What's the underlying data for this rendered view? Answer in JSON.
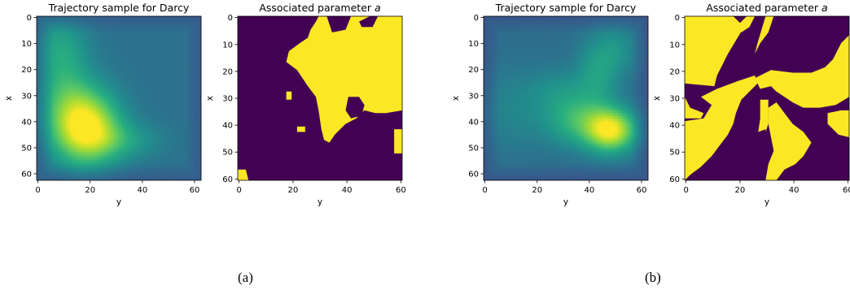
{
  "captions": [
    "(a)",
    "(b)"
  ],
  "chart_data": [
    {
      "type": "heatmap",
      "title": "Trajectory sample for Darcy",
      "xlabel": "y",
      "ylabel": "x",
      "xticks": [
        0,
        20,
        40,
        60
      ],
      "yticks": [
        0,
        10,
        20,
        30,
        40,
        50,
        60
      ],
      "xlim": [
        0,
        63
      ],
      "ylim": [
        63,
        0
      ],
      "colormap": "viridis",
      "field": {
        "background": 0.38,
        "edge_fade": 0.22,
        "blobs": [
          {
            "x": 19,
            "y": 43,
            "sx": 9,
            "sy": 10,
            "amp": 0.62
          },
          {
            "x": 10,
            "y": 28,
            "sx": 8,
            "sy": 14,
            "amp": 0.22
          },
          {
            "x": 34,
            "y": 48,
            "sx": 10,
            "sy": 5,
            "amp": 0.15
          },
          {
            "x": 8,
            "y": 10,
            "sx": 7,
            "sy": 8,
            "amp": 0.12
          }
        ]
      }
    },
    {
      "type": "heatmap",
      "title": "Associated parameter a",
      "title_text": "Associated parameter ",
      "title_italic": "a",
      "xlabel": "y",
      "ylabel": "x",
      "xticks": [
        0,
        20,
        40,
        60
      ],
      "yticks": [
        0,
        10,
        20,
        30,
        40,
        50,
        60
      ],
      "xlim": [
        0,
        61
      ],
      "ylim": [
        61,
        0
      ],
      "colors": {
        "low": "#440154",
        "high": "#fde725"
      },
      "mask": {
        "high_regions": [
          [
            [
              27,
              5
            ],
            [
              29,
              2
            ],
            [
              30,
              0
            ],
            [
              61,
              0
            ],
            [
              61,
              35
            ],
            [
              55,
              36
            ],
            [
              51,
              36
            ],
            [
              47,
              35
            ],
            [
              44,
              38
            ],
            [
              40,
              40
            ],
            [
              36,
              44
            ],
            [
              34,
              47
            ],
            [
              32,
              46
            ],
            [
              31,
              42
            ],
            [
              30,
              35
            ],
            [
              29,
              30
            ],
            [
              26,
              26
            ],
            [
              22,
              20
            ],
            [
              18,
              17
            ],
            [
              19,
              13
            ],
            [
              23,
              10
            ],
            [
              26,
              8
            ]
          ],
          [
            [
              0,
              57
            ],
            [
              3,
              57
            ],
            [
              4,
              61
            ],
            [
              0,
              61
            ]
          ],
          [
            [
              18,
              28
            ],
            [
              20,
              28
            ],
            [
              20,
              31
            ],
            [
              18,
              31
            ]
          ],
          [
            [
              22,
              41
            ],
            [
              25,
              41
            ],
            [
              25,
              43
            ],
            [
              22,
              43
            ]
          ],
          [
            [
              58,
              42
            ],
            [
              61,
              42
            ],
            [
              61,
              51
            ],
            [
              58,
              51
            ]
          ]
        ],
        "low_regions": [
          [
            [
              41,
              30
            ],
            [
              45,
              30
            ],
            [
              47,
              33
            ],
            [
              46,
              37
            ],
            [
              42,
              38
            ],
            [
              40,
              35
            ]
          ],
          [
            [
              33,
              0
            ],
            [
              42,
              0
            ],
            [
              40,
              5
            ],
            [
              35,
              6
            ]
          ],
          [
            [
              45,
              2
            ],
            [
              49,
              0
            ],
            [
              52,
              0
            ],
            [
              50,
              4
            ],
            [
              46,
              4
            ]
          ],
          [
            [
              45,
              40
            ],
            [
              50,
              38
            ],
            [
              54,
              40
            ],
            [
              52,
              44
            ],
            [
              47,
              43
            ]
          ]
        ]
      }
    },
    {
      "type": "heatmap",
      "title": "Trajectory sample for Darcy",
      "xlabel": "y",
      "ylabel": "x",
      "xticks": [
        0,
        20,
        40,
        60
      ],
      "yticks": [
        0,
        10,
        20,
        30,
        40,
        50,
        60
      ],
      "xlim": [
        0,
        63
      ],
      "ylim": [
        63,
        0
      ],
      "colormap": "viridis",
      "field": {
        "background": 0.36,
        "edge_fade": 0.25,
        "blobs": [
          {
            "x": 49,
            "y": 44,
            "sx": 7,
            "sy": 6,
            "amp": 0.62
          },
          {
            "x": 35,
            "y": 40,
            "sx": 8,
            "sy": 7,
            "amp": 0.26
          },
          {
            "x": 44,
            "y": 22,
            "sx": 6,
            "sy": 10,
            "amp": 0.2
          },
          {
            "x": 52,
            "y": 12,
            "sx": 6,
            "sy": 7,
            "amp": 0.12
          },
          {
            "x": 12,
            "y": 36,
            "sx": 12,
            "sy": 12,
            "amp": 0.1
          },
          {
            "x": 29,
            "y": 28,
            "sx": 8,
            "sy": 6,
            "amp": 0.1
          }
        ]
      }
    },
    {
      "type": "heatmap",
      "title": "Associated parameter a",
      "title_text": "Associated parameter ",
      "title_italic": "a",
      "xlabel": "y",
      "ylabel": "x",
      "xticks": [
        0,
        20,
        40,
        60
      ],
      "yticks": [
        0,
        10,
        20,
        30,
        40,
        50,
        60
      ],
      "xlim": [
        0,
        61
      ],
      "ylim": [
        61,
        0
      ],
      "colors": {
        "low": "#440154",
        "high": "#fde725"
      },
      "mask": {
        "high_regions": [
          [
            [
              0,
              0
            ],
            [
              18,
              0
            ],
            [
              22,
              4
            ],
            [
              19,
              9
            ],
            [
              16,
              14
            ],
            [
              14,
              18
            ],
            [
              12,
              22
            ],
            [
              11,
              26
            ],
            [
              0,
              25
            ]
          ],
          [
            [
              23,
              0
            ],
            [
              26,
              0
            ],
            [
              24,
              4
            ],
            [
              21,
              6
            ],
            [
              20,
              3
            ]
          ],
          [
            [
              30,
              0
            ],
            [
              33,
              0
            ],
            [
              31,
              6
            ],
            [
              28,
              10
            ],
            [
              26,
              14
            ],
            [
              27,
              10
            ]
          ],
          [
            [
              0,
              38
            ],
            [
              6,
              38
            ],
            [
              7,
              36
            ],
            [
              2,
              34
            ],
            [
              0,
              30
            ]
          ],
          [
            [
              6,
              30
            ],
            [
              12,
              27
            ],
            [
              20,
              24
            ],
            [
              26,
              22
            ],
            [
              27,
              25
            ],
            [
              24,
              28
            ],
            [
              21,
              31
            ],
            [
              19,
              36
            ],
            [
              18,
              40
            ],
            [
              16,
              44
            ],
            [
              13,
              48
            ],
            [
              10,
              52
            ],
            [
              6,
              56
            ],
            [
              2,
              59
            ],
            [
              0,
              61
            ],
            [
              0,
              39
            ],
            [
              7,
              38
            ],
            [
              10,
              33
            ]
          ],
          [
            [
              26,
              23
            ],
            [
              32,
              20
            ],
            [
              40,
              21
            ],
            [
              47,
              21
            ],
            [
              52,
              19
            ],
            [
              55,
              16
            ],
            [
              58,
              10
            ],
            [
              61,
              7
            ],
            [
              61,
              30
            ],
            [
              56,
              33
            ],
            [
              50,
              34
            ],
            [
              44,
              34
            ],
            [
              40,
              32
            ],
            [
              37,
              30
            ],
            [
              34,
              28
            ],
            [
              32,
              26
            ],
            [
              28,
              27
            ]
          ],
          [
            [
              31,
              34
            ],
            [
              34,
              32
            ],
            [
              37,
              36
            ],
            [
              40,
              40
            ],
            [
              44,
              43
            ],
            [
              47,
              47
            ],
            [
              44,
              52
            ],
            [
              41,
              55
            ],
            [
              37,
              57
            ],
            [
              34,
              61
            ],
            [
              30,
              61
            ],
            [
              31,
              55
            ],
            [
              33,
              50
            ],
            [
              32,
              45
            ],
            [
              31,
              40
            ]
          ],
          [
            [
              28,
              31
            ],
            [
              31,
              31
            ],
            [
              31,
              40
            ],
            [
              29,
              46
            ],
            [
              27,
              45
            ],
            [
              28,
              38
            ]
          ],
          [
            [
              53,
              36
            ],
            [
              58,
              35
            ],
            [
              61,
              35
            ],
            [
              61,
              45
            ],
            [
              57,
              44
            ],
            [
              53,
              40
            ]
          ]
        ],
        "low_regions": [
          [
            [
              40,
              0
            ],
            [
              45,
              0
            ],
            [
              48,
              3
            ],
            [
              45,
              8
            ],
            [
              41,
              6
            ]
          ],
          [
            [
              22,
              45
            ],
            [
              30,
              42
            ],
            [
              30,
              48
            ],
            [
              26,
              52
            ],
            [
              22,
              50
            ]
          ]
        ]
      }
    }
  ]
}
